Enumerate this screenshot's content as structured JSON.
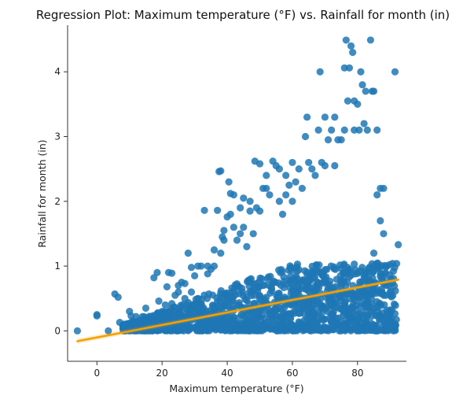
{
  "chart_data": {
    "type": "scatter",
    "title": "Regression Plot: Maximum temperature (°F) vs. Rainfall for month (in)",
    "xlabel": "Maximum temperature (°F)",
    "ylabel": "Rainfall for month (in)",
    "xlim": [
      -9,
      95
    ],
    "ylim": [
      -0.47,
      4.72
    ],
    "xticks": [
      0,
      20,
      40,
      60,
      80
    ],
    "yticks": [
      0,
      1,
      2,
      3,
      4
    ],
    "grid": false,
    "colors": {
      "points": "#1f77b4",
      "regression": "#f5a000"
    },
    "regression": {
      "x": [
        -6,
        92.5
      ],
      "y": [
        -0.16,
        0.79
      ]
    },
    "points": [
      [
        -6,
        0.0
      ],
      [
        0,
        0.25
      ],
      [
        0,
        0.23
      ],
      [
        3.5,
        0.0
      ],
      [
        5.5,
        0.57
      ],
      [
        6.5,
        0.52
      ],
      [
        7,
        0.13
      ],
      [
        8,
        0.08
      ],
      [
        10,
        0.3
      ],
      [
        10.5,
        0.23
      ],
      [
        11,
        0.15
      ],
      [
        12,
        0.22
      ],
      [
        13,
        0.1
      ],
      [
        14,
        0.22
      ],
      [
        15,
        0.35
      ],
      [
        17,
        0.22
      ],
      [
        17.5,
        0.82
      ],
      [
        18.5,
        0.9
      ],
      [
        19,
        0.46
      ],
      [
        20,
        0.1
      ],
      [
        21,
        0.4
      ],
      [
        21.5,
        0.68
      ],
      [
        22,
        0.9
      ],
      [
        23,
        0.89
      ],
      [
        24,
        0.55
      ],
      [
        25,
        0.7
      ],
      [
        26,
        0.75
      ],
      [
        27,
        0.73
      ],
      [
        28,
        1.2
      ],
      [
        29,
        0.6
      ],
      [
        30,
        0.85
      ],
      [
        31,
        0.5
      ],
      [
        32,
        1.0
      ],
      [
        33,
        1.86
      ],
      [
        34,
        0.88
      ],
      [
        35,
        0.95
      ],
      [
        36,
        1.25
      ],
      [
        37,
        1.86
      ],
      [
        37.5,
        2.46
      ],
      [
        38,
        2.47
      ],
      [
        38.5,
        1.45
      ],
      [
        39,
        1.55
      ],
      [
        40,
        1.76
      ],
      [
        40.5,
        2.3
      ],
      [
        41,
        2.12
      ],
      [
        42,
        2.1
      ],
      [
        43,
        1.4
      ],
      [
        44,
        1.9
      ],
      [
        45,
        1.6
      ],
      [
        46,
        1.3
      ],
      [
        47,
        1.85
      ],
      [
        48,
        1.5
      ],
      [
        48.5,
        2.62
      ],
      [
        49,
        1.9
      ],
      [
        50,
        2.58
      ],
      [
        51,
        2.2
      ],
      [
        52,
        2.4
      ],
      [
        53,
        2.1
      ],
      [
        54,
        2.62
      ],
      [
        55,
        2.55
      ],
      [
        56,
        2.0
      ],
      [
        57,
        1.8
      ],
      [
        58,
        2.4
      ],
      [
        59,
        2.25
      ],
      [
        60,
        2.0
      ],
      [
        61,
        2.3
      ],
      [
        62,
        2.5
      ],
      [
        63,
        2.2
      ],
      [
        64,
        3.0
      ],
      [
        64.5,
        3.3
      ],
      [
        65,
        2.6
      ],
      [
        66,
        2.5
      ],
      [
        67,
        2.4
      ],
      [
        68,
        3.1
      ],
      [
        68.5,
        4.0
      ],
      [
        69,
        2.6
      ],
      [
        70,
        3.3
      ],
      [
        71,
        2.95
      ],
      [
        72,
        3.1
      ],
      [
        73,
        3.3
      ],
      [
        74,
        2.95
      ],
      [
        75,
        2.95
      ],
      [
        76,
        4.06
      ],
      [
        76.5,
        4.49
      ],
      [
        77,
        3.55
      ],
      [
        77.5,
        4.06
      ],
      [
        78,
        4.4
      ],
      [
        78.5,
        4.3
      ],
      [
        79,
        3.55
      ],
      [
        80,
        3.5
      ],
      [
        80.5,
        3.1
      ],
      [
        81,
        4.0
      ],
      [
        81.5,
        3.8
      ],
      [
        82,
        3.2
      ],
      [
        82.5,
        3.7
      ],
      [
        83,
        3.1
      ],
      [
        84,
        4.49
      ],
      [
        84.5,
        3.7
      ],
      [
        85,
        3.7
      ],
      [
        86,
        2.1
      ],
      [
        87,
        1.7
      ],
      [
        88,
        1.5
      ],
      [
        89,
        0.7
      ],
      [
        90,
        0.25
      ],
      [
        91,
        0.0
      ],
      [
        91.5,
        4.0
      ],
      [
        92.5,
        1.33
      ],
      [
        86,
        3.1
      ],
      [
        79,
        3.1
      ],
      [
        76,
        3.1
      ],
      [
        73,
        2.55
      ],
      [
        70,
        2.55
      ],
      [
        47,
        2.0
      ],
      [
        45,
        2.05
      ],
      [
        42,
        1.6
      ],
      [
        39,
        1.4
      ],
      [
        36,
        1.0
      ],
      [
        34,
        1.0
      ],
      [
        31,
        1.0
      ],
      [
        29,
        0.98
      ],
      [
        27,
        0.5
      ],
      [
        25,
        0.6
      ],
      [
        23,
        0.42
      ],
      [
        22,
        0.3
      ],
      [
        20,
        0.2
      ],
      [
        18,
        0.15
      ],
      [
        16,
        0.1
      ],
      [
        14,
        0.05
      ],
      [
        12,
        0.0
      ],
      [
        10,
        0.0
      ],
      [
        90,
        0.6
      ],
      [
        89,
        1.0
      ],
      [
        88,
        2.2
      ],
      [
        87,
        2.2
      ],
      [
        86,
        1.0
      ],
      [
        85,
        1.2
      ],
      [
        60,
        2.6
      ],
      [
        58,
        2.1
      ],
      [
        56,
        2.5
      ],
      [
        52,
        2.2
      ],
      [
        50,
        1.85
      ],
      [
        44,
        1.5
      ],
      [
        41,
        1.8
      ],
      [
        38,
        1.2
      ]
    ]
  }
}
